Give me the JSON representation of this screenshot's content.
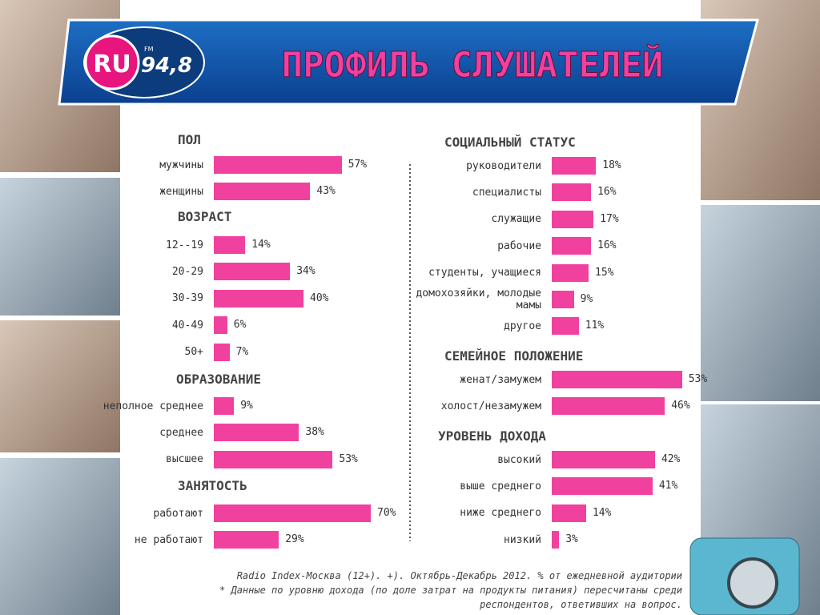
{
  "header": {
    "logo": "RU",
    "fm": "FM",
    "frequency": "94,8",
    "title": "ПРОФИЛЬ СЛУШАТЕЛЕЙ"
  },
  "chart_data": [
    {
      "type": "bar",
      "title": "ПОЛ",
      "categories": [
        "мужчины",
        "женщины"
      ],
      "values": [
        57,
        43
      ],
      "value_labels": [
        "57%",
        "43%"
      ],
      "color": "#f0419e"
    },
    {
      "type": "bar",
      "title": "ВОЗРАСТ",
      "categories": [
        "12--19",
        "20-29",
        "30-39",
        "40-49",
        "50+"
      ],
      "values": [
        14,
        34,
        40,
        6,
        7
      ],
      "value_labels": [
        "14%",
        "34%",
        "40%",
        "6%",
        "7%"
      ],
      "color": "#f0419e"
    },
    {
      "type": "bar",
      "title": "ОБРАЗОВАНИЕ",
      "categories": [
        "неполное среднее",
        "среднее",
        "высшее"
      ],
      "values": [
        9,
        38,
        53
      ],
      "value_labels": [
        "9%",
        "38%",
        "53%"
      ],
      "color": "#f0419e"
    },
    {
      "type": "bar",
      "title": "ЗАНЯТОСТЬ",
      "categories": [
        "работают",
        "не работают"
      ],
      "values": [
        70,
        29
      ],
      "value_labels": [
        "70%",
        "29%"
      ],
      "color": "#f0419e"
    },
    {
      "type": "bar",
      "title": "СОЦИАЛЬНЫЙ СТАТУС",
      "categories": [
        "руководители",
        "специалисты",
        "служащие",
        "рабочие",
        "студенты, учащиеся",
        "домохозяйки, молодые мамы",
        "другое"
      ],
      "values": [
        18,
        16,
        17,
        16,
        15,
        9,
        11
      ],
      "value_labels": [
        "18%",
        "16%",
        "17%",
        "16%",
        "15%",
        "9%",
        "11%"
      ],
      "color": "#f0419e"
    },
    {
      "type": "bar",
      "title": "СЕМЕЙНОЕ ПОЛОЖЕНИЕ",
      "categories": [
        "женат/замужем",
        "холост/незамужем"
      ],
      "values": [
        53,
        46
      ],
      "value_labels": [
        "53%",
        "46%"
      ],
      "color": "#f0419e"
    },
    {
      "type": "bar",
      "title": "УРОВЕНЬ ДОХОДА",
      "categories": [
        "высокий",
        "выше среднего",
        "ниже среднего",
        "низкий"
      ],
      "values": [
        42,
        41,
        14,
        3
      ],
      "value_labels": [
        "42%",
        "41%",
        "14%",
        "3%"
      ],
      "color": "#f0419e"
    }
  ],
  "footnote": [
    "Radio Index-Москва (12+). +). Октябрь-Декабрь 2012. % от ежедневной аудитории",
    "* Данные по уровню дохода (по доле затрат на продукты питания) пересчитаны среди",
    "респондентов, ответивших на вопрос."
  ]
}
